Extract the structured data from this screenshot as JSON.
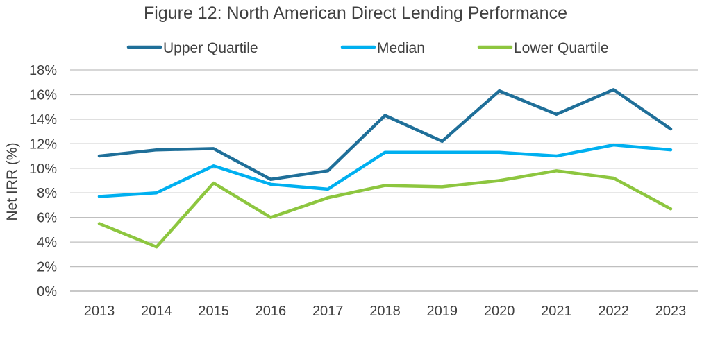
{
  "chart_data": {
    "type": "line",
    "title": "Figure 12: North American Direct Lending Performance",
    "xlabel": "",
    "ylabel": "Net IRR (%)",
    "ylim": [
      0,
      18
    ],
    "yticks": [
      "0%",
      "2%",
      "4%",
      "6%",
      "8%",
      "10%",
      "12%",
      "14%",
      "16%",
      "18%"
    ],
    "grid": true,
    "legend": "top",
    "categories": [
      "2013",
      "2014",
      "2015",
      "2016",
      "2017",
      "2018",
      "2019",
      "2020",
      "2021",
      "2022",
      "2023"
    ],
    "series": [
      {
        "name": "Upper Quartile",
        "color": "#1f6f99",
        "values": [
          11.0,
          11.5,
          11.6,
          9.1,
          9.8,
          14.3,
          12.2,
          16.3,
          14.4,
          16.4,
          13.2
        ]
      },
      {
        "name": "Median",
        "color": "#00b0f0",
        "values": [
          7.7,
          8.0,
          10.2,
          8.7,
          8.3,
          11.3,
          11.3,
          11.3,
          11.0,
          11.9,
          11.5
        ]
      },
      {
        "name": "Lower Quartile",
        "color": "#8dc63f",
        "values": [
          5.5,
          3.6,
          8.8,
          6.0,
          7.6,
          8.6,
          8.5,
          9.0,
          9.8,
          9.2,
          6.7
        ]
      }
    ]
  }
}
